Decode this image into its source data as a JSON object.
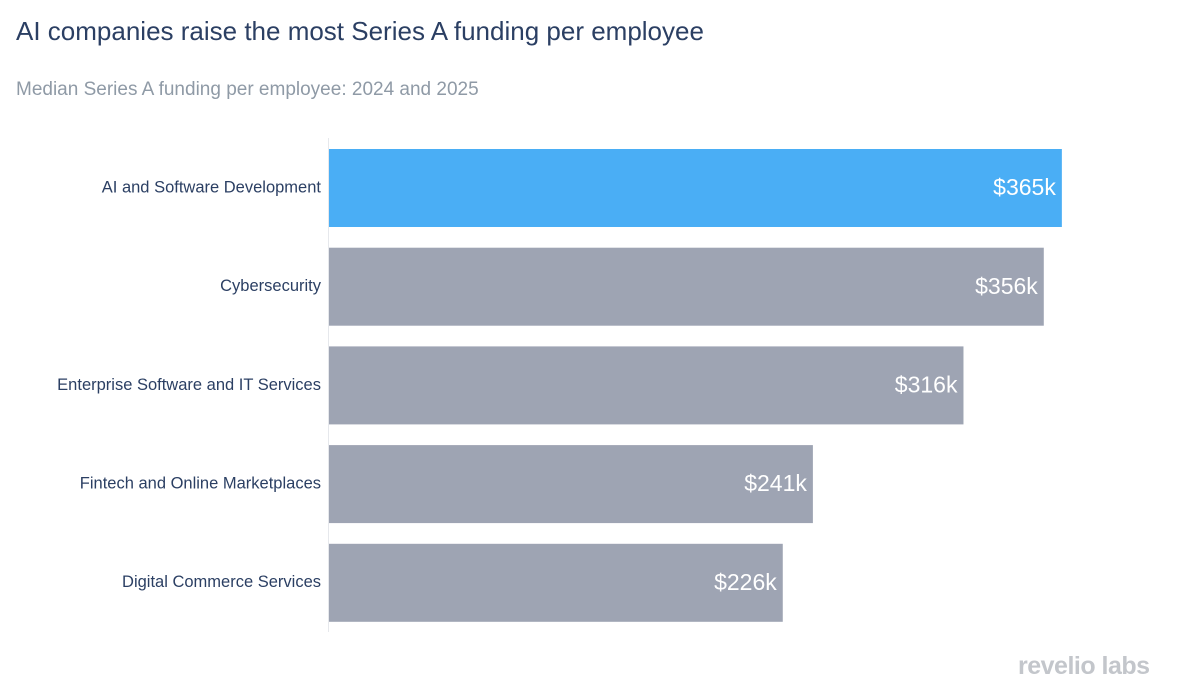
{
  "header": {
    "title": "AI companies raise the most Series A funding per employee",
    "subtitle": "Median Series A funding per employee: 2024 and 2025"
  },
  "brand": {
    "logo_text": "revelio labs"
  },
  "colors": {
    "highlight": "#4aaef5",
    "default_bar": "#9ea4b3",
    "axis_line": "#e6e8ec"
  },
  "chart_data": {
    "type": "bar",
    "orientation": "horizontal",
    "title": "AI companies raise the most Series A funding per employee",
    "subtitle": "Median Series A funding per employee: 2024 and 2025",
    "xlabel": "",
    "ylabel": "",
    "unit": "k USD",
    "categories": [
      "AI and Software Development",
      "Cybersecurity",
      "Enterprise Software and IT Services",
      "Fintech and Online Marketplaces",
      "Digital Commerce Services"
    ],
    "values": [
      365,
      356,
      316,
      241,
      226
    ],
    "value_labels": [
      "$365k",
      "$356k",
      "$316k",
      "$241k",
      "$226k"
    ],
    "highlighted": [
      true,
      false,
      false,
      false,
      false
    ],
    "xlim": [
      0,
      383
    ],
    "grid": false,
    "legend": "none"
  }
}
